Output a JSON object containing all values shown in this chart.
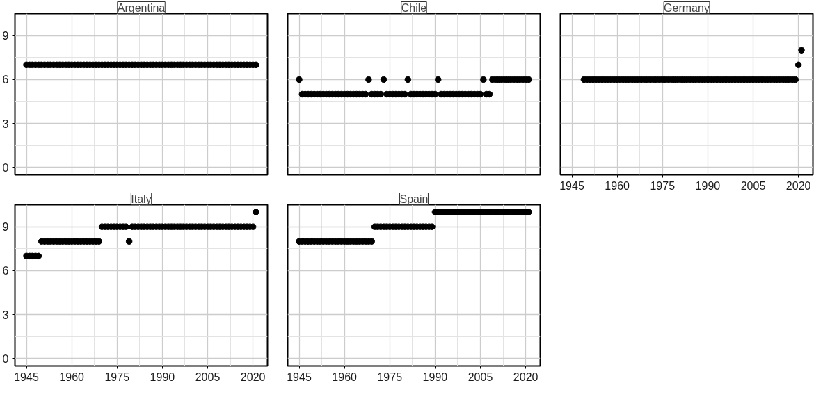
{
  "chart_data": [
    {
      "type": "scatter",
      "title": "Argentina",
      "color": "#000000",
      "marker": "circle",
      "grid": true,
      "tick_labels": "y",
      "xlim": [
        1941.2,
        2024.8
      ],
      "ylim": [
        -0.5,
        10.5
      ],
      "xticks": [
        1945,
        1960,
        1975,
        1990,
        2005,
        2020
      ],
      "yticks": [
        0,
        3,
        6,
        9
      ],
      "x": [
        1945,
        1946,
        1947,
        1948,
        1949,
        1950,
        1951,
        1952,
        1953,
        1954,
        1955,
        1956,
        1957,
        1958,
        1959,
        1960,
        1961,
        1962,
        1963,
        1964,
        1965,
        1966,
        1967,
        1968,
        1969,
        1970,
        1971,
        1972,
        1973,
        1974,
        1975,
        1976,
        1977,
        1978,
        1979,
        1980,
        1981,
        1982,
        1983,
        1984,
        1985,
        1986,
        1987,
        1988,
        1989,
        1990,
        1991,
        1992,
        1993,
        1994,
        1995,
        1996,
        1997,
        1998,
        1999,
        2000,
        2001,
        2002,
        2003,
        2004,
        2005,
        2006,
        2007,
        2008,
        2009,
        2010,
        2011,
        2012,
        2013,
        2014,
        2015,
        2016,
        2017,
        2018,
        2019,
        2020,
        2021
      ],
      "values": [
        7,
        7,
        7,
        7,
        7,
        7,
        7,
        7,
        7,
        7,
        7,
        7,
        7,
        7,
        7,
        7,
        7,
        7,
        7,
        7,
        7,
        7,
        7,
        7,
        7,
        7,
        7,
        7,
        7,
        7,
        7,
        7,
        7,
        7,
        7,
        7,
        7,
        7,
        7,
        7,
        7,
        7,
        7,
        7,
        7,
        7,
        7,
        7,
        7,
        7,
        7,
        7,
        7,
        7,
        7,
        7,
        7,
        7,
        7,
        7,
        7,
        7,
        7,
        7,
        7,
        7,
        7,
        7,
        7,
        7,
        7,
        7,
        7,
        7,
        7,
        7,
        7
      ]
    },
    {
      "type": "scatter",
      "title": "Chile",
      "color": "#000000",
      "marker": "circle",
      "grid": true,
      "tick_labels": false,
      "xlim": [
        1941.2,
        2024.8
      ],
      "ylim": [
        -0.5,
        10.5
      ],
      "xticks": [
        1945,
        1960,
        1975,
        1990,
        2005,
        2020
      ],
      "yticks": [
        0,
        3,
        6,
        9
      ],
      "x": [
        1945,
        1946,
        1947,
        1948,
        1949,
        1950,
        1951,
        1952,
        1953,
        1954,
        1955,
        1956,
        1957,
        1958,
        1959,
        1960,
        1961,
        1962,
        1963,
        1964,
        1965,
        1966,
        1967,
        1968,
        1969,
        1970,
        1971,
        1972,
        1973,
        1974,
        1975,
        1976,
        1977,
        1978,
        1979,
        1980,
        1981,
        1982,
        1983,
        1984,
        1985,
        1986,
        1987,
        1988,
        1989,
        1990,
        1991,
        1992,
        1993,
        1994,
        1995,
        1996,
        1997,
        1998,
        1999,
        2000,
        2001,
        2002,
        2003,
        2004,
        2005,
        2006,
        2007,
        2008,
        2009,
        2010,
        2011,
        2012,
        2013,
        2014,
        2015,
        2016,
        2017,
        2018,
        2019,
        2020,
        2021
      ],
      "values": [
        6,
        5,
        5,
        5,
        5,
        5,
        5,
        5,
        5,
        5,
        5,
        5,
        5,
        5,
        5,
        5,
        5,
        5,
        5,
        5,
        5,
        5,
        5,
        6,
        5,
        5,
        5,
        5,
        6,
        5,
        5,
        5,
        5,
        5,
        5,
        5,
        6,
        5,
        5,
        5,
        5,
        5,
        5,
        5,
        5,
        5,
        6,
        5,
        5,
        5,
        5,
        5,
        5,
        5,
        5,
        5,
        5,
        5,
        5,
        5,
        5,
        6,
        5,
        5,
        6,
        6,
        6,
        6,
        6,
        6,
        6,
        6,
        6,
        6,
        6,
        6,
        6
      ]
    },
    {
      "type": "scatter",
      "title": "Germany",
      "color": "#000000",
      "marker": "circle",
      "grid": true,
      "tick_labels": "x",
      "xlim": [
        1941.2,
        2024.8
      ],
      "ylim": [
        -0.5,
        10.5
      ],
      "xticks": [
        1945,
        1960,
        1975,
        1990,
        2005,
        2020
      ],
      "yticks": [
        0,
        3,
        6,
        9
      ],
      "x": [
        1949,
        1950,
        1951,
        1952,
        1953,
        1954,
        1955,
        1956,
        1957,
        1958,
        1959,
        1960,
        1961,
        1962,
        1963,
        1964,
        1965,
        1966,
        1967,
        1968,
        1969,
        1970,
        1971,
        1972,
        1973,
        1974,
        1975,
        1976,
        1977,
        1978,
        1979,
        1980,
        1981,
        1982,
        1983,
        1984,
        1985,
        1986,
        1987,
        1988,
        1989,
        1990,
        1991,
        1992,
        1993,
        1994,
        1995,
        1996,
        1997,
        1998,
        1999,
        2000,
        2001,
        2002,
        2003,
        2004,
        2005,
        2006,
        2007,
        2008,
        2009,
        2010,
        2011,
        2012,
        2013,
        2014,
        2015,
        2016,
        2017,
        2018,
        2019,
        2020,
        2021
      ],
      "values": [
        6,
        6,
        6,
        6,
        6,
        6,
        6,
        6,
        6,
        6,
        6,
        6,
        6,
        6,
        6,
        6,
        6,
        6,
        6,
        6,
        6,
        6,
        6,
        6,
        6,
        6,
        6,
        6,
        6,
        6,
        6,
        6,
        6,
        6,
        6,
        6,
        6,
        6,
        6,
        6,
        6,
        6,
        6,
        6,
        6,
        6,
        6,
        6,
        6,
        6,
        6,
        6,
        6,
        6,
        6,
        6,
        6,
        6,
        6,
        6,
        6,
        6,
        6,
        6,
        6,
        6,
        6,
        6,
        6,
        6,
        6,
        7,
        8
      ]
    },
    {
      "type": "scatter",
      "title": "Italy",
      "color": "#000000",
      "marker": "circle",
      "grid": true,
      "xlim": [
        1941.2,
        2024.8
      ],
      "ylim": [
        -0.5,
        10.5
      ],
      "xticks": [
        1945,
        1960,
        1975,
        1990,
        2005,
        2020
      ],
      "yticks": [
        0,
        3,
        6,
        9
      ],
      "x": [
        1945,
        1946,
        1947,
        1948,
        1949,
        1950,
        1951,
        1952,
        1953,
        1954,
        1955,
        1956,
        1957,
        1958,
        1959,
        1960,
        1961,
        1962,
        1963,
        1964,
        1965,
        1966,
        1967,
        1968,
        1969,
        1970,
        1971,
        1972,
        1973,
        1974,
        1975,
        1976,
        1977,
        1978,
        1979,
        1980,
        1981,
        1982,
        1983,
        1984,
        1985,
        1986,
        1987,
        1988,
        1989,
        1990,
        1991,
        1992,
        1993,
        1994,
        1995,
        1996,
        1997,
        1998,
        1999,
        2000,
        2001,
        2002,
        2003,
        2004,
        2005,
        2006,
        2007,
        2008,
        2009,
        2010,
        2011,
        2012,
        2013,
        2014,
        2015,
        2016,
        2017,
        2018,
        2019,
        2020,
        2021
      ],
      "values": [
        7,
        7,
        7,
        7,
        7,
        8,
        8,
        8,
        8,
        8,
        8,
        8,
        8,
        8,
        8,
        8,
        8,
        8,
        8,
        8,
        8,
        8,
        8,
        8,
        8,
        9,
        9,
        9,
        9,
        9,
        9,
        9,
        9,
        9,
        8,
        9,
        9,
        9,
        9,
        9,
        9,
        9,
        9,
        9,
        9,
        9,
        9,
        9,
        9,
        9,
        9,
        9,
        9,
        9,
        9,
        9,
        9,
        9,
        9,
        9,
        9,
        9,
        9,
        9,
        9,
        9,
        9,
        9,
        9,
        9,
        9,
        9,
        9,
        9,
        9,
        9,
        10
      ]
    },
    {
      "type": "scatter",
      "title": "Spain",
      "color": "#000000",
      "marker": "circle",
      "grid": true,
      "tick_labels": "x",
      "xlim": [
        1941.2,
        2024.8
      ],
      "ylim": [
        -0.5,
        10.5
      ],
      "xticks": [
        1945,
        1960,
        1975,
        1990,
        2005,
        2020
      ],
      "yticks": [
        0,
        3,
        6,
        9
      ],
      "x": [
        1945,
        1946,
        1947,
        1948,
        1949,
        1950,
        1951,
        1952,
        1953,
        1954,
        1955,
        1956,
        1957,
        1958,
        1959,
        1960,
        1961,
        1962,
        1963,
        1964,
        1965,
        1966,
        1967,
        1968,
        1969,
        1970,
        1971,
        1972,
        1973,
        1974,
        1975,
        1976,
        1977,
        1978,
        1979,
        1980,
        1981,
        1982,
        1983,
        1984,
        1985,
        1986,
        1987,
        1988,
        1989,
        1990,
        1991,
        1992,
        1993,
        1994,
        1995,
        1996,
        1997,
        1998,
        1999,
        2000,
        2001,
        2002,
        2003,
        2004,
        2005,
        2006,
        2007,
        2008,
        2009,
        2010,
        2011,
        2012,
        2013,
        2014,
        2015,
        2016,
        2017,
        2018,
        2019,
        2020,
        2021
      ],
      "values": [
        8,
        8,
        8,
        8,
        8,
        8,
        8,
        8,
        8,
        8,
        8,
        8,
        8,
        8,
        8,
        8,
        8,
        8,
        8,
        8,
        8,
        8,
        8,
        8,
        8,
        9,
        9,
        9,
        9,
        9,
        9,
        9,
        9,
        9,
        9,
        9,
        9,
        9,
        9,
        9,
        9,
        9,
        9,
        9,
        9,
        10,
        10,
        10,
        10,
        10,
        10,
        10,
        10,
        10,
        10,
        10,
        10,
        10,
        10,
        10,
        10,
        10,
        10,
        10,
        10,
        10,
        10,
        10,
        10,
        10,
        10,
        10,
        10,
        10,
        10,
        10,
        10
      ]
    }
  ]
}
